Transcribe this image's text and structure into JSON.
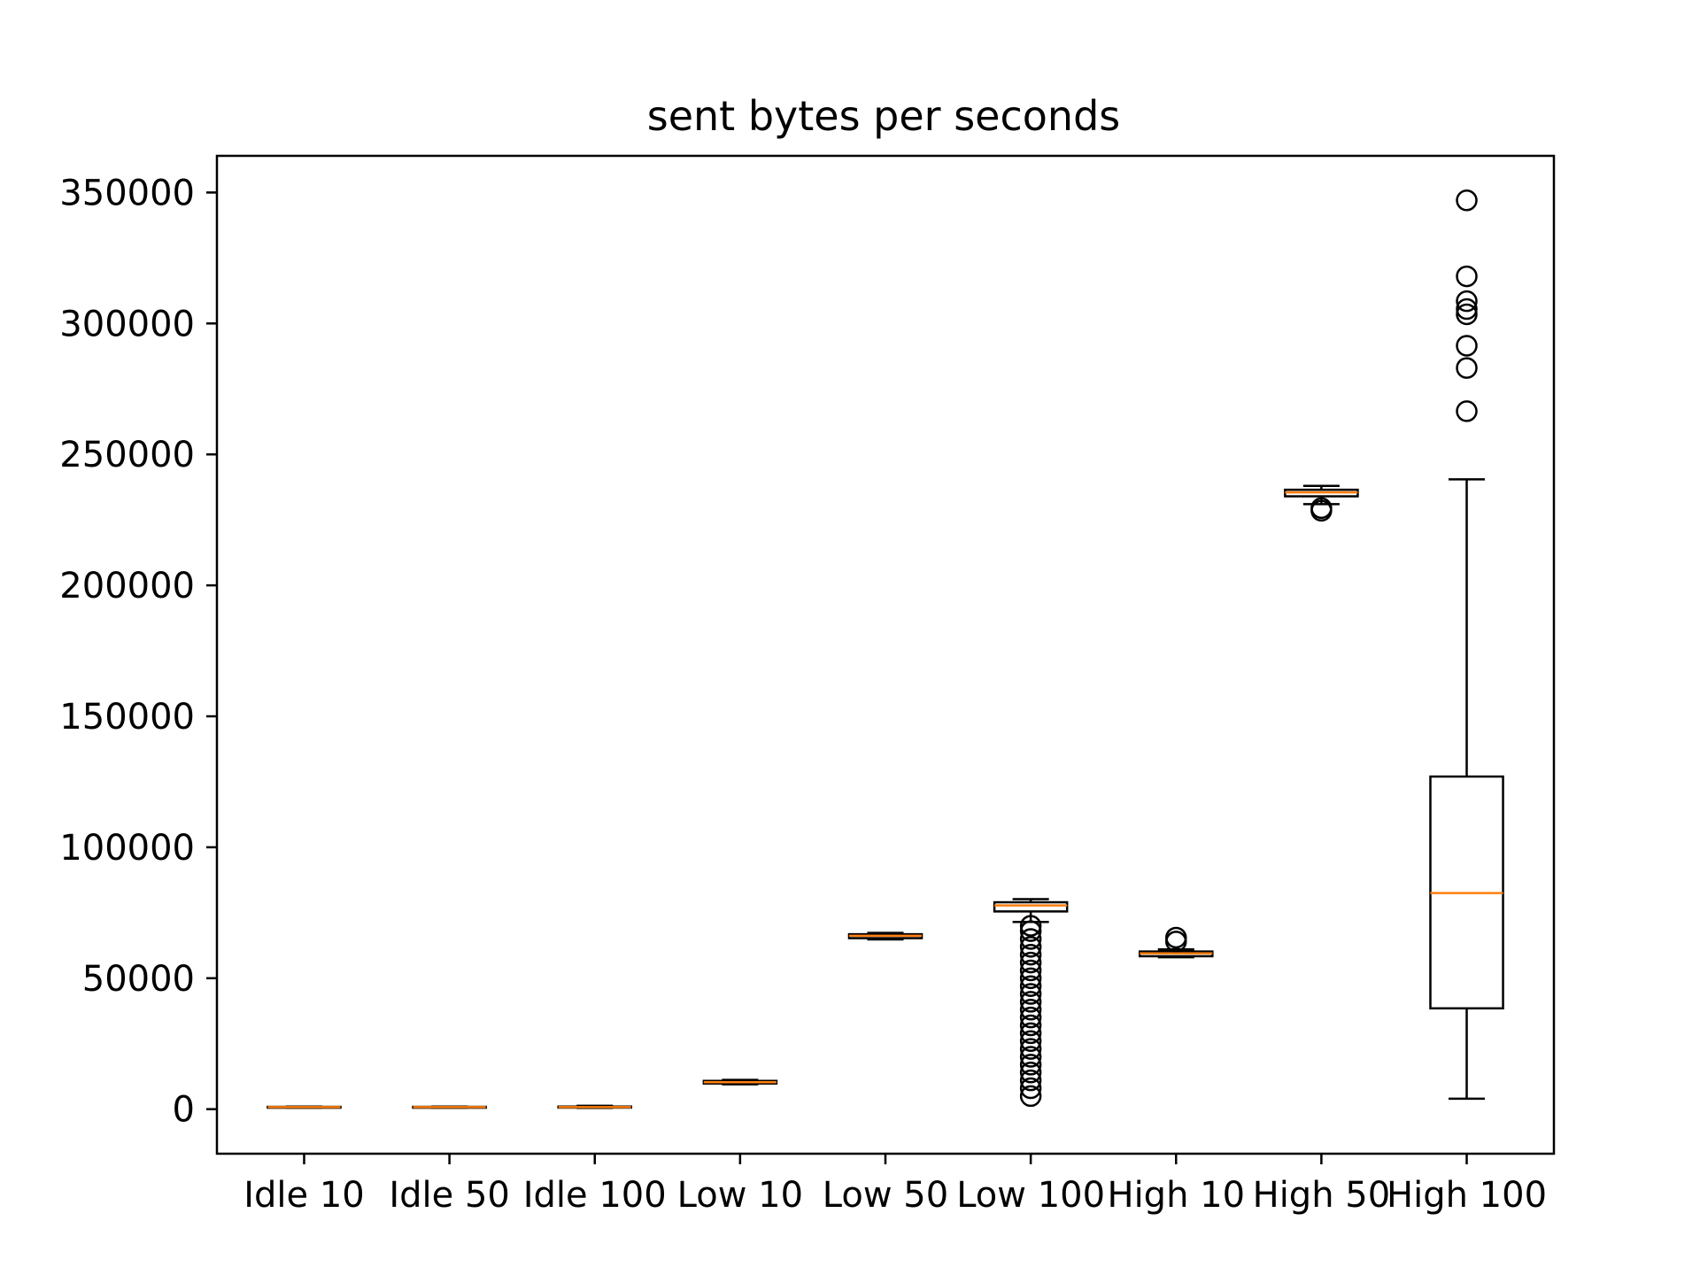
{
  "chart_data": {
    "type": "box",
    "title": "sent bytes per seconds",
    "xlabel": "",
    "ylabel": "",
    "ylim": [
      -17000,
      364000
    ],
    "yticks": [
      0,
      50000,
      100000,
      150000,
      200000,
      250000,
      300000,
      350000
    ],
    "ytick_labels": [
      "0",
      "50000",
      "100000",
      "150000",
      "200000",
      "250000",
      "300000",
      "350000"
    ],
    "grid": false,
    "colors": {
      "box": "#000000",
      "median": "#ff7f0e",
      "background": "#ffffff"
    },
    "categories": [
      "Idle 10",
      "Idle 50",
      "Idle 100",
      "Low 10",
      "Low 50",
      "Low 100",
      "High 10",
      "High 50",
      "High 100"
    ],
    "boxes": [
      {
        "whisker_low": 600,
        "q1": 700,
        "median": 800,
        "q3": 900,
        "whisker_high": 1000,
        "outliers": []
      },
      {
        "whisker_low": 600,
        "q1": 700,
        "median": 800,
        "q3": 900,
        "whisker_high": 1000,
        "outliers": []
      },
      {
        "whisker_low": 500,
        "q1": 600,
        "median": 800,
        "q3": 1000,
        "whisker_high": 1300,
        "outliers": []
      },
      {
        "whisker_low": 9500,
        "q1": 9800,
        "median": 10300,
        "q3": 10800,
        "whisker_high": 11200,
        "outliers": []
      },
      {
        "whisker_low": 64800,
        "q1": 65300,
        "median": 66200,
        "q3": 66800,
        "whisker_high": 67300,
        "outliers": []
      },
      {
        "whisker_low": 71500,
        "q1": 75500,
        "median": 77800,
        "q3": 79000,
        "whisker_high": 80200,
        "outliers": [
          5000,
          8000,
          11000,
          14000,
          17000,
          20000,
          23000,
          26000,
          29000,
          32000,
          35000,
          38000,
          41000,
          44000,
          47000,
          50000,
          53000,
          56000,
          59000,
          62000,
          65000,
          68000,
          70000
        ]
      },
      {
        "whisker_low": 58000,
        "q1": 58400,
        "median": 59500,
        "q3": 60200,
        "whisker_high": 61000,
        "outliers": [
          64000,
          65500
        ]
      },
      {
        "whisker_low": 231000,
        "q1": 234000,
        "median": 235500,
        "q3": 236500,
        "whisker_high": 238000,
        "outliers": [
          228500,
          229500
        ]
      },
      {
        "whisker_low": 4000,
        "q1": 38500,
        "median": 82500,
        "q3": 127000,
        "whisker_high": 240500,
        "outliers": [
          266500,
          283000,
          291500,
          303500,
          305500,
          308500,
          318000,
          347000
        ]
      }
    ]
  }
}
